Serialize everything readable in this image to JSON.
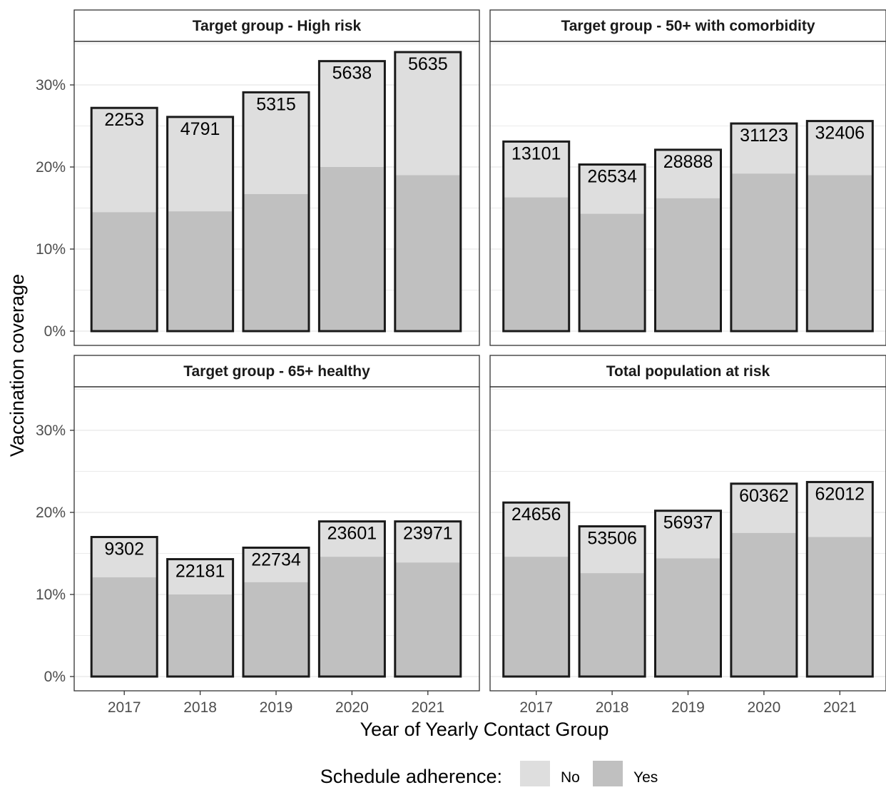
{
  "chart_data": {
    "type": "bar",
    "layout": "faceted 2x2, stacked bars with total outline",
    "xlabel": "Year of Yearly Contact Group",
    "ylabel": "Vaccination coverage",
    "categories": [
      "2017",
      "2018",
      "2019",
      "2020",
      "2021"
    ],
    "ylim": [
      0,
      35
    ],
    "y_ticks": [
      0,
      10,
      20,
      30
    ],
    "y_tick_labels": [
      "0%",
      "10%",
      "20%",
      "30%"
    ],
    "grid": true,
    "legend": {
      "title": "Schedule adherence:",
      "position": "bottom",
      "entries": [
        {
          "label": "No",
          "color": "#dedede"
        },
        {
          "label": "Yes",
          "color": "#c0c0c0"
        }
      ]
    },
    "facets": [
      {
        "title": "Target group - High risk",
        "totals": [
          27.2,
          26.1,
          29.1,
          32.9,
          34.0
        ],
        "yes": [
          14.5,
          14.6,
          16.7,
          20.0,
          19.0
        ],
        "labels": [
          "2253",
          "4791",
          "5315",
          "5638",
          "5635"
        ]
      },
      {
        "title": "Target group - 50+ with comorbidity",
        "totals": [
          23.1,
          20.3,
          22.1,
          25.3,
          25.6
        ],
        "yes": [
          16.3,
          14.3,
          16.2,
          19.2,
          19.0
        ],
        "labels": [
          "13101",
          "26534",
          "28888",
          "31123",
          "32406"
        ]
      },
      {
        "title": "Target group - 65+ healthy",
        "totals": [
          17.0,
          14.3,
          15.7,
          18.9,
          18.9
        ],
        "yes": [
          12.1,
          10.0,
          11.5,
          14.6,
          13.9
        ],
        "labels": [
          "9302",
          "22181",
          "22734",
          "23601",
          "23971"
        ]
      },
      {
        "title": "Total population at risk",
        "totals": [
          21.2,
          18.3,
          20.2,
          23.5,
          23.7
        ],
        "yes": [
          14.6,
          12.6,
          14.4,
          17.5,
          17.0
        ],
        "labels": [
          "24656",
          "53506",
          "56937",
          "60362",
          "62012"
        ]
      }
    ],
    "colors": {
      "yes_fill": "#c0c0c0",
      "no_fill": "#dedede",
      "outline": "#1a1a1a",
      "grid": "#ebebeb",
      "strip_bg": "#ffffff",
      "axis_text": "#4d4d4d"
    }
  }
}
